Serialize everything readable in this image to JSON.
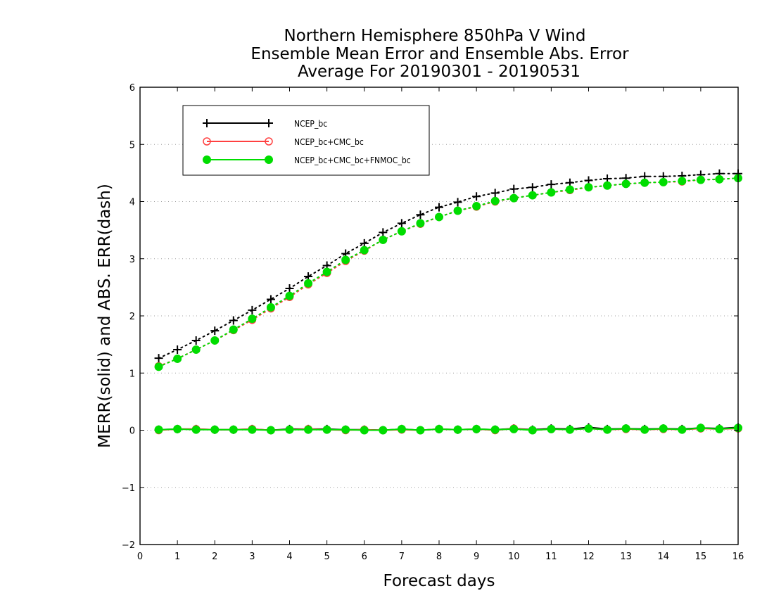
{
  "chart_data": {
    "type": "line",
    "title_lines": [
      "Northern Hemisphere 850hPa V Wind",
      "Ensemble Mean Error and Ensemble Abs. Error",
      "Average For 20190301 - 20190531"
    ],
    "xlabel": "Forecast days",
    "ylabel": "MERR(solid) and ABS. ERR(dash)",
    "xlim": [
      0,
      16
    ],
    "ylim": [
      -2,
      6
    ],
    "x_ticks": [
      0,
      1,
      2,
      3,
      4,
      5,
      6,
      7,
      8,
      9,
      10,
      11,
      12,
      13,
      14,
      15,
      16
    ],
    "y_ticks": [
      -2,
      -1,
      0,
      1,
      2,
      3,
      4,
      5,
      6
    ],
    "y_tick_labels": [
      "−2",
      "−1",
      "0",
      "1",
      "2",
      "3",
      "4",
      "5",
      "6"
    ],
    "grid": "horizontal dotted",
    "legend_position": "top-left",
    "x": [
      0.5,
      1.0,
      1.5,
      2.0,
      2.5,
      3.0,
      3.5,
      4.0,
      4.5,
      5.0,
      5.5,
      6.0,
      6.5,
      7.0,
      7.5,
      8.0,
      8.5,
      9.0,
      9.5,
      10.0,
      10.5,
      11.0,
      11.5,
      12.0,
      12.5,
      13.0,
      13.5,
      14.0,
      14.5,
      15.0,
      15.5,
      16.0
    ],
    "series": [
      {
        "name": "NCEP_bc",
        "color": "#000000",
        "marker": "plus",
        "merr": [
          0.01,
          0.02,
          0.02,
          0.01,
          0.01,
          0.02,
          0.0,
          0.02,
          0.02,
          0.02,
          0.01,
          0.01,
          0.0,
          0.02,
          0.0,
          0.02,
          0.01,
          0.02,
          0.01,
          0.03,
          0.01,
          0.03,
          0.02,
          0.05,
          0.02,
          0.03,
          0.02,
          0.03,
          0.02,
          0.04,
          0.03,
          0.05
        ],
        "abs_err": [
          1.26,
          1.41,
          1.57,
          1.74,
          1.92,
          2.1,
          2.29,
          2.48,
          2.69,
          2.88,
          3.09,
          3.27,
          3.46,
          3.62,
          3.77,
          3.9,
          3.99,
          4.09,
          4.15,
          4.22,
          4.25,
          4.3,
          4.33,
          4.37,
          4.4,
          4.41,
          4.44,
          4.44,
          4.45,
          4.47,
          4.49,
          4.49
        ]
      },
      {
        "name": "NCEP_bc+CMC_bc",
        "color": "#ff4040",
        "marker": "open-circle",
        "merr": [
          0.0,
          0.02,
          0.02,
          0.01,
          0.01,
          0.02,
          0.0,
          0.01,
          0.02,
          0.01,
          0.0,
          0.01,
          0.0,
          0.01,
          0.0,
          0.02,
          0.01,
          0.02,
          0.0,
          0.03,
          0.0,
          0.02,
          0.01,
          0.03,
          0.01,
          0.02,
          0.01,
          0.02,
          0.01,
          0.03,
          0.02,
          0.03
        ],
        "abs_err": [
          1.12,
          1.25,
          1.41,
          1.57,
          1.75,
          1.93,
          2.13,
          2.33,
          2.55,
          2.75,
          2.96,
          3.14,
          3.33,
          3.48,
          3.61,
          3.73,
          3.84,
          3.91,
          4.0,
          4.06,
          4.11,
          4.16,
          4.2,
          4.25,
          4.28,
          4.31,
          4.33,
          4.34,
          4.35,
          4.38,
          4.39,
          4.41
        ]
      },
      {
        "name": "NCEP_bc+CMC_bc+FNMOC_bc",
        "color": "#00dd00",
        "marker": "filled-circle",
        "merr": [
          0.01,
          0.02,
          0.01,
          0.01,
          0.01,
          0.01,
          0.0,
          0.01,
          0.01,
          0.01,
          0.01,
          0.0,
          0.0,
          0.02,
          0.0,
          0.02,
          0.01,
          0.02,
          0.01,
          0.02,
          0.0,
          0.02,
          0.01,
          0.03,
          0.01,
          0.03,
          0.01,
          0.03,
          0.01,
          0.04,
          0.02,
          0.04
        ],
        "abs_err": [
          1.11,
          1.25,
          1.41,
          1.57,
          1.76,
          1.95,
          2.15,
          2.35,
          2.57,
          2.77,
          2.98,
          3.15,
          3.33,
          3.48,
          3.62,
          3.73,
          3.84,
          3.92,
          4.01,
          4.06,
          4.11,
          4.16,
          4.21,
          4.25,
          4.28,
          4.31,
          4.33,
          4.34,
          4.36,
          4.38,
          4.39,
          4.41
        ]
      }
    ]
  }
}
